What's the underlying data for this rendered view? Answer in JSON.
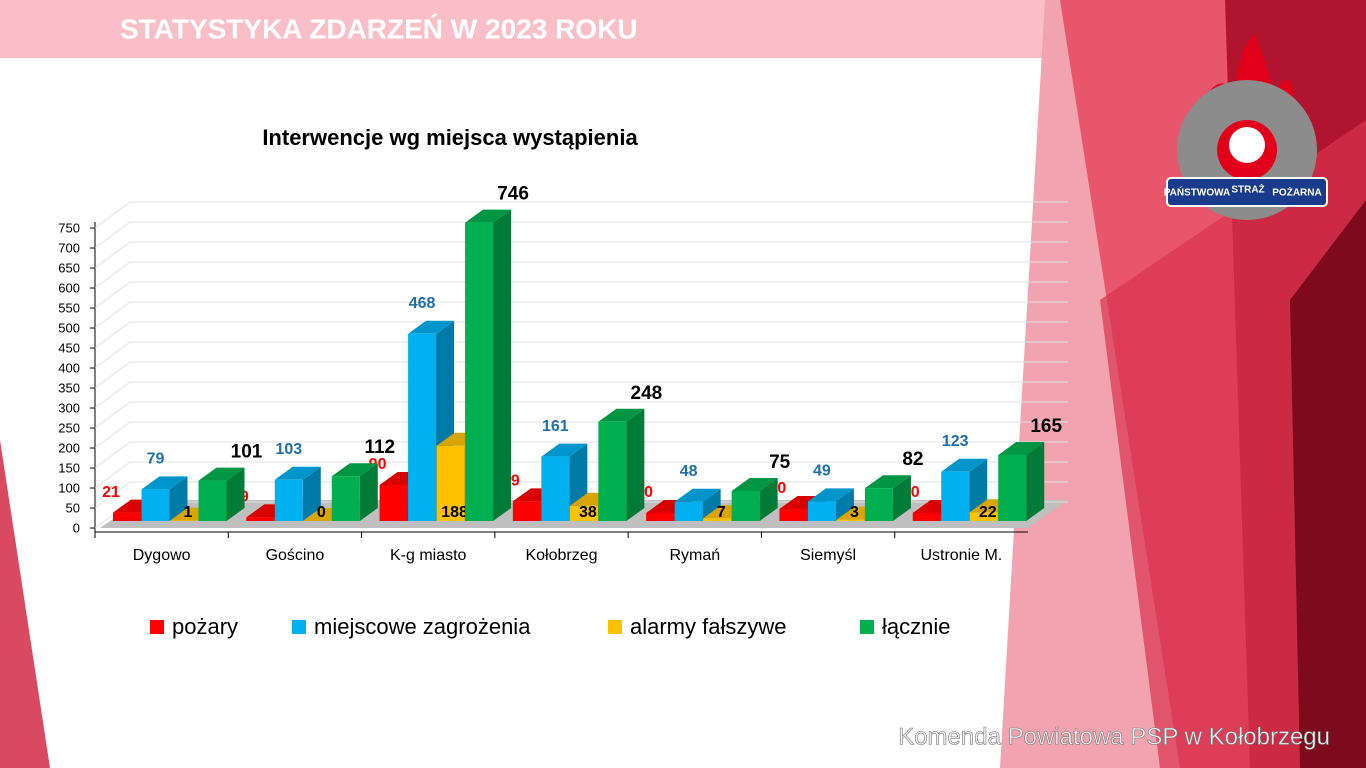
{
  "slide": {
    "title": "STATYSTYKA ZDARZEŃ W 2023 ROKU",
    "footer": "Komenda Powiatowa PSP w Kołobrzegu",
    "logo": [
      "PAŃSTWOWA",
      "STRAŻ",
      "POŻARNA"
    ]
  },
  "chart_data": {
    "type": "bar3d",
    "title": "Interwencje wg miejsca wystąpienia",
    "categories": [
      "Dygowo",
      "Gościno",
      "K-g miasto",
      "Kołobrzeg",
      "Rymań",
      "Siemyśl",
      "Ustronie M."
    ],
    "series": [
      {
        "name": "pożary",
        "color": "#ff0000",
        "label_color": "#ff0000",
        "values": [
          21,
          9,
          90,
          49,
          20,
          30,
          20
        ]
      },
      {
        "name": "miejscowe zagrożenia",
        "color": "#00b0f0",
        "label_color": "#1f6fa8",
        "values": [
          79,
          103,
          468,
          161,
          48,
          49,
          123
        ]
      },
      {
        "name": "alarmy fałszywe",
        "color": "#ffc000",
        "label_color": "#000000",
        "values": [
          1,
          0,
          188,
          38,
          7,
          3,
          22
        ]
      },
      {
        "name": "łącznie",
        "color": "#00b050",
        "label_color": "#000000",
        "values": [
          101,
          112,
          746,
          248,
          75,
          82,
          165
        ]
      }
    ],
    "ylim": [
      0,
      750
    ],
    "yticks": [
      0,
      50,
      100,
      150,
      200,
      250,
      300,
      350,
      400,
      450,
      500,
      550,
      600,
      650,
      700,
      750
    ],
    "grid": true,
    "legend": "bottom"
  }
}
